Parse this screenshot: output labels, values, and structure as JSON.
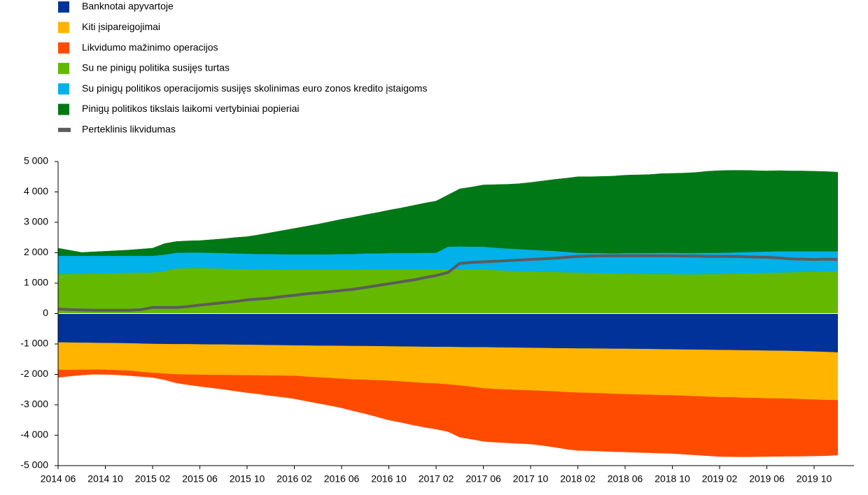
{
  "chart_data": {
    "type": "area",
    "x": [
      "2014 06",
      "2014 07",
      "2014 08",
      "2014 09",
      "2014 10",
      "2014 11",
      "2014 12",
      "2015 01",
      "2015 02",
      "2015 03",
      "2015 04",
      "2015 05",
      "2015 06",
      "2015 07",
      "2015 08",
      "2015 09",
      "2015 10",
      "2015 11",
      "2015 12",
      "2016 01",
      "2016 02",
      "2016 03",
      "2016 04",
      "2016 05",
      "2016 06",
      "2016 07",
      "2016 08",
      "2016 09",
      "2016 10",
      "2016 11",
      "2016 12",
      "2017 01",
      "2017 02",
      "2017 03",
      "2017 04",
      "2017 05",
      "2017 06",
      "2017 07",
      "2017 08",
      "2017 09",
      "2017 10",
      "2017 11",
      "2017 12",
      "2018 01",
      "2018 02",
      "2018 03",
      "2018 04",
      "2018 05",
      "2018 06",
      "2018 07",
      "2018 08",
      "2018 09",
      "2018 10",
      "2018 11",
      "2018 12",
      "2019 01",
      "2019 02",
      "2019 03",
      "2019 04",
      "2019 05",
      "2019 06",
      "2019 07",
      "2019 08",
      "2019 09",
      "2019 10",
      "2019 11",
      "2019 12"
    ],
    "series": [
      {
        "name": "Banknotai apyvartoje",
        "color": "#003299",
        "values": [
          -950,
          -955,
          -960,
          -965,
          -970,
          -975,
          -980,
          -990,
          -1000,
          -1005,
          -1010,
          -1010,
          -1015,
          -1020,
          -1020,
          -1025,
          -1030,
          -1035,
          -1040,
          -1045,
          -1050,
          -1055,
          -1060,
          -1060,
          -1065,
          -1070,
          -1070,
          -1075,
          -1080,
          -1085,
          -1090,
          -1095,
          -1100,
          -1100,
          -1105,
          -1110,
          -1110,
          -1115,
          -1120,
          -1125,
          -1130,
          -1135,
          -1140,
          -1145,
          -1150,
          -1150,
          -1155,
          -1160,
          -1160,
          -1165,
          -1170,
          -1175,
          -1180,
          -1185,
          -1190,
          -1195,
          -1200,
          -1205,
          -1210,
          -1215,
          -1220,
          -1225,
          -1230,
          -1240,
          -1250,
          -1265,
          -1280
        ]
      },
      {
        "name": "Kiti įsipareigojimai",
        "color": "#ffb400",
        "values": [
          -900,
          -900,
          -890,
          -880,
          -880,
          -890,
          -900,
          -930,
          -950,
          -970,
          -990,
          -1000,
          -1000,
          -1000,
          -1000,
          -1000,
          -1000,
          -1000,
          -1000,
          -1000,
          -1000,
          -1020,
          -1040,
          -1060,
          -1080,
          -1100,
          -1110,
          -1120,
          -1130,
          -1150,
          -1170,
          -1190,
          -1200,
          -1230,
          -1260,
          -1300,
          -1350,
          -1370,
          -1380,
          -1390,
          -1400,
          -1410,
          -1420,
          -1440,
          -1450,
          -1460,
          -1470,
          -1480,
          -1490,
          -1500,
          -1500,
          -1510,
          -1510,
          -1520,
          -1530,
          -1540,
          -1550,
          -1550,
          -1560,
          -1560,
          -1570,
          -1570,
          -1570,
          -1580,
          -1580,
          -1580,
          -1570
        ]
      },
      {
        "name": "Likvidumo mažinimo operacijos",
        "color": "#ff4b00",
        "values": [
          -250,
          -200,
          -170,
          -150,
          -150,
          -150,
          -160,
          -150,
          -150,
          -200,
          -280,
          -330,
          -380,
          -420,
          -470,
          -520,
          -570,
          -610,
          -660,
          -700,
          -750,
          -800,
          -850,
          -900,
          -955,
          -1030,
          -1110,
          -1200,
          -1290,
          -1340,
          -1400,
          -1450,
          -1500,
          -1550,
          -1700,
          -1720,
          -1740,
          -1745,
          -1750,
          -1755,
          -1760,
          -1790,
          -1830,
          -1870,
          -1900,
          -1900,
          -1900,
          -1900,
          -1900,
          -1900,
          -1905,
          -1905,
          -1910,
          -1920,
          -1930,
          -1940,
          -1950,
          -1950,
          -1940,
          -1930,
          -1910,
          -1900,
          -1890,
          -1870,
          -1850,
          -1830,
          -1800
        ]
      },
      {
        "name": "Su ne pinigų politika susijęs turtas",
        "color": "#65b800",
        "values": [
          1300,
          1300,
          1310,
          1320,
          1320,
          1330,
          1340,
          1350,
          1350,
          1400,
          1480,
          1500,
          1500,
          1490,
          1480,
          1470,
          1460,
          1450,
          1450,
          1440,
          1440,
          1440,
          1440,
          1440,
          1440,
          1440,
          1450,
          1450,
          1450,
          1450,
          1450,
          1450,
          1450,
          1460,
          1460,
          1450,
          1450,
          1430,
          1410,
          1400,
          1390,
          1380,
          1370,
          1360,
          1350,
          1340,
          1330,
          1320,
          1320,
          1310,
          1300,
          1300,
          1300,
          1290,
          1290,
          1300,
          1300,
          1310,
          1320,
          1330,
          1340,
          1350,
          1360,
          1370,
          1380,
          1390,
          1400
        ]
      },
      {
        "name": "Su pinigų politikos operacijomis susijęs skolinimas euro zonos kredito įstaigoms",
        "color": "#00b1ea",
        "values": [
          600,
          600,
          590,
          580,
          580,
          570,
          560,
          550,
          550,
          540,
          520,
          510,
          510,
          510,
          510,
          510,
          510,
          510,
          510,
          510,
          510,
          510,
          510,
          510,
          520,
          520,
          530,
          530,
          540,
          540,
          540,
          550,
          550,
          740,
          750,
          750,
          750,
          740,
          730,
          720,
          710,
          700,
          690,
          670,
          650,
          650,
          660,
          660,
          670,
          680,
          690,
          700,
          700,
          700,
          700,
          700,
          700,
          700,
          700,
          700,
          700,
          700,
          690,
          680,
          670,
          660,
          650
        ]
      },
      {
        "name": "Pinigų politikos tikslais laikomi vertybiniai popieriai",
        "color": "#007816",
        "values": [
          250,
          180,
          110,
          130,
          150,
          170,
          190,
          220,
          250,
          360,
          370,
          380,
          390,
          430,
          470,
          520,
          560,
          630,
          700,
          780,
          850,
          920,
          990,
          1070,
          1140,
          1210,
          1270,
          1340,
          1410,
          1480,
          1560,
          1630,
          1700,
          1700,
          1890,
          1960,
          2030,
          2070,
          2110,
          2150,
          2210,
          2280,
          2350,
          2420,
          2500,
          2510,
          2520,
          2540,
          2560,
          2570,
          2580,
          2600,
          2610,
          2630,
          2650,
          2680,
          2700,
          2700,
          2690,
          2670,
          2650,
          2650,
          2640,
          2640,
          2630,
          2620,
          2600
        ]
      },
      {
        "name": "Perteklinis likvidumas",
        "color": "#5c5c5c",
        "type": "line",
        "values": [
          150,
          130,
          120,
          110,
          110,
          110,
          110,
          130,
          200,
          200,
          200,
          230,
          280,
          320,
          360,
          400,
          450,
          480,
          510,
          560,
          600,
          650,
          680,
          720,
          760,
          800,
          860,
          920,
          980,
          1040,
          1100,
          1180,
          1250,
          1350,
          1650,
          1680,
          1700,
          1720,
          1740,
          1760,
          1780,
          1800,
          1820,
          1850,
          1880,
          1890,
          1900,
          1900,
          1900,
          1900,
          1900,
          1900,
          1900,
          1890,
          1890,
          1880,
          1880,
          1880,
          1870,
          1860,
          1850,
          1830,
          1800,
          1790,
          1780,
          1790,
          1780
        ]
      }
    ],
    "ylim": [
      -5000,
      5000
    ],
    "yticks": [
      {
        "value": -5000,
        "label": "-5 000"
      },
      {
        "value": -4000,
        "label": "-4 000"
      },
      {
        "value": -3000,
        "label": "-3 000"
      },
      {
        "value": -2000,
        "label": "-2 000"
      },
      {
        "value": -1000,
        "label": "-1 000"
      },
      0,
      {
        "value": 1000,
        "label": "1 000"
      },
      {
        "value": 2000,
        "label": "2 000"
      },
      {
        "value": 3000,
        "label": "3 000"
      },
      {
        "value": 4000,
        "label": "4 000"
      },
      {
        "value": 5000,
        "label": "5 000"
      }
    ]
  }
}
